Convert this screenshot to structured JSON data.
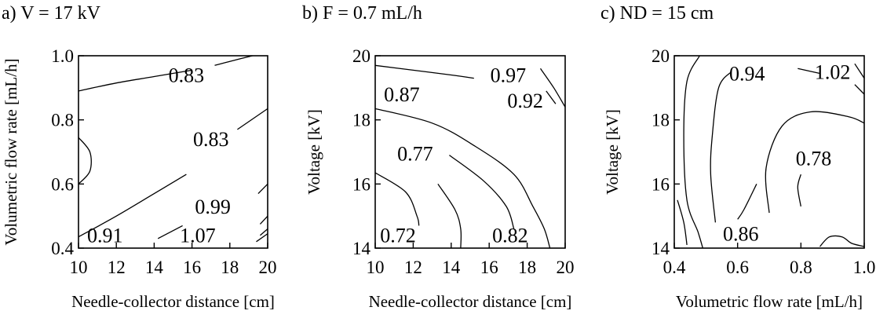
{
  "chart_data": [
    {
      "type": "contour",
      "panel_label": "a) V = 17 kV",
      "xlabel": "Needle-collector distance [cm]",
      "ylabel": "Volumetric flow rate [mL/h]",
      "xlim": [
        10,
        20
      ],
      "ylim": [
        0.4,
        1.0
      ],
      "x_ticks": [
        "10",
        "12",
        "14",
        "16",
        "18",
        "20"
      ],
      "y_ticks": [
        "0.4",
        "0.6",
        "0.8",
        "1.0"
      ],
      "contour_labels": [
        {
          "text": "0.83",
          "x": 15.7,
          "y": 0.94
        },
        {
          "text": "0.83",
          "x": 17.0,
          "y": 0.74
        },
        {
          "text": "0.99",
          "x": 17.1,
          "y": 0.53
        },
        {
          "text": "0.91",
          "x": 11.4,
          "y": 0.44
        },
        {
          "text": "1.07",
          "x": 16.3,
          "y": 0.44
        }
      ],
      "contours": [
        {
          "points": [
            [
              10,
              0.89
            ],
            [
              12,
              0.915
            ],
            [
              14,
              0.935
            ],
            [
              16,
              0.955
            ]
          ]
        },
        {
          "points": [
            [
              17.2,
              0.97
            ],
            [
              18.5,
              0.99
            ],
            [
              19.2,
              1.0
            ]
          ]
        },
        {
          "points": [
            [
              10,
              0.745
            ],
            [
              10.6,
              0.7
            ],
            [
              10.6,
              0.64
            ],
            [
              10,
              0.6
            ]
          ]
        },
        {
          "points": [
            [
              10,
              0.435
            ],
            [
              12,
              0.5
            ],
            [
              14,
              0.57
            ],
            [
              15.7,
              0.63
            ]
          ]
        },
        {
          "points": [
            [
              18.4,
              0.77
            ],
            [
              20,
              0.835
            ]
          ]
        },
        {
          "points": [
            [
              14.2,
              0.43
            ],
            [
              15.5,
              0.47
            ]
          ]
        },
        {
          "points": [
            [
              19.5,
              0.57
            ],
            [
              20,
              0.6
            ]
          ]
        },
        {
          "points": [
            [
              19.6,
              0.475
            ],
            [
              20,
              0.5
            ]
          ]
        },
        {
          "points": [
            [
              19.6,
              0.44
            ],
            [
              20,
              0.46
            ]
          ]
        },
        {
          "points": [
            [
              19.4,
              0.42
            ],
            [
              20,
              0.445
            ]
          ]
        }
      ]
    },
    {
      "type": "contour",
      "panel_label": "b) F = 0.7 mL/h",
      "xlabel": "Needle-collector distance [cm]",
      "ylabel": "Voltage [kV]",
      "xlim": [
        10,
        20
      ],
      "ylim": [
        14,
        20
      ],
      "x_ticks": [
        "10",
        "12",
        "14",
        "16",
        "18",
        "20"
      ],
      "y_ticks": [
        "14",
        "16",
        "18",
        "20"
      ],
      "contour_labels": [
        {
          "text": "0.97",
          "x": 17.0,
          "y": 19.4
        },
        {
          "text": "0.87",
          "x": 11.4,
          "y": 18.8
        },
        {
          "text": "0.92",
          "x": 17.9,
          "y": 18.6
        },
        {
          "text": "0.77",
          "x": 12.1,
          "y": 16.95
        },
        {
          "text": "0.72",
          "x": 11.2,
          "y": 14.4
        },
        {
          "text": "0.82",
          "x": 17.1,
          "y": 14.4
        }
      ],
      "contours": [
        {
          "points": [
            [
              10,
              19.7
            ],
            [
              12,
              19.55
            ],
            [
              14,
              19.4
            ],
            [
              15.2,
              19.3
            ]
          ]
        },
        {
          "points": [
            [
              18.7,
              19.6
            ],
            [
              19.4,
              19.0
            ],
            [
              20,
              18.4
            ]
          ]
        },
        {
          "points": [
            [
              10,
              18.35
            ],
            [
              13,
              17.9
            ],
            [
              15.2,
              17.2
            ],
            [
              17.3,
              16.3
            ],
            [
              18.3,
              15.3
            ],
            [
              18.9,
              14.6
            ],
            [
              19.2,
              14.0
            ]
          ]
        },
        {
          "points": [
            [
              13.9,
              16.9
            ],
            [
              15.7,
              16.1
            ],
            [
              16.9,
              15.3
            ],
            [
              17.3,
              14.6
            ]
          ]
        },
        {
          "points": [
            [
              10,
              16.35
            ],
            [
              11.6,
              15.75
            ],
            [
              12.2,
              15.0
            ],
            [
              12.3,
              14.7
            ]
          ]
        },
        {
          "points": [
            [
              13.3,
              16.0
            ],
            [
              14.2,
              15.2
            ],
            [
              14.5,
              14.6
            ],
            [
              14.5,
              14.0
            ]
          ]
        },
        {
          "points": [
            [
              19.0,
              18.9
            ],
            [
              19.5,
              18.5
            ]
          ]
        }
      ]
    },
    {
      "type": "contour",
      "panel_label": "c) ND = 15 cm",
      "xlabel": "Volumetric flow rate [mL/h]",
      "ylabel": "Voltage [kV]",
      "xlim": [
        0.4,
        1.0
      ],
      "ylim": [
        14,
        20
      ],
      "x_ticks": [
        "0.4",
        "0.6",
        "0.8",
        "1.0"
      ],
      "y_ticks": [
        "14",
        "16",
        "18",
        "20"
      ],
      "contour_labels": [
        {
          "text": "0.94",
          "x": 0.63,
          "y": 19.45
        },
        {
          "text": "1.02",
          "x": 0.9,
          "y": 19.5
        },
        {
          "text": "0.78",
          "x": 0.84,
          "y": 16.8
        },
        {
          "text": "0.86",
          "x": 0.61,
          "y": 14.45
        }
      ],
      "contours": [
        {
          "points": [
            [
              0.48,
              20
            ],
            [
              0.44,
              19.2
            ],
            [
              0.43,
              17.5
            ],
            [
              0.44,
              15.5
            ],
            [
              0.475,
              14.5
            ],
            [
              0.49,
              14.0
            ]
          ]
        },
        {
          "points": [
            [
              0.58,
              19.5
            ],
            [
              0.54,
              19.0
            ],
            [
              0.52,
              17.5
            ],
            [
              0.515,
              16.3
            ],
            [
              0.53,
              14.8
            ]
          ]
        },
        {
          "points": [
            [
              0.79,
              19.6
            ],
            [
              0.86,
              19.45
            ]
          ]
        },
        {
          "points": [
            [
              0.66,
              16.0
            ],
            [
              0.62,
              15.2
            ],
            [
              0.6,
              14.9
            ]
          ]
        },
        {
          "points": [
            [
              0.7,
              15.1
            ],
            [
              0.69,
              16.5
            ],
            [
              0.74,
              17.8
            ],
            [
              0.83,
              18.25
            ],
            [
              0.95,
              18.1
            ],
            [
              1.0,
              17.9
            ]
          ]
        },
        {
          "points": [
            [
              0.8,
              15.3
            ],
            [
              0.79,
              15.9
            ],
            [
              0.8,
              16.3
            ]
          ]
        },
        {
          "points": [
            [
              0.41,
              15.5
            ],
            [
              0.43,
              14.8
            ],
            [
              0.44,
              14.1
            ]
          ]
        },
        {
          "points": [
            [
              0.86,
              14.05
            ],
            [
              0.89,
              14.35
            ],
            [
              0.93,
              14.35
            ],
            [
              0.96,
              14.15
            ],
            [
              1.0,
              14.05
            ]
          ]
        },
        {
          "points": [
            [
              0.97,
              19.75
            ],
            [
              1.0,
              19.3
            ]
          ]
        },
        {
          "points": [
            [
              0.97,
              19.1
            ],
            [
              1.0,
              18.8
            ]
          ]
        }
      ]
    }
  ]
}
